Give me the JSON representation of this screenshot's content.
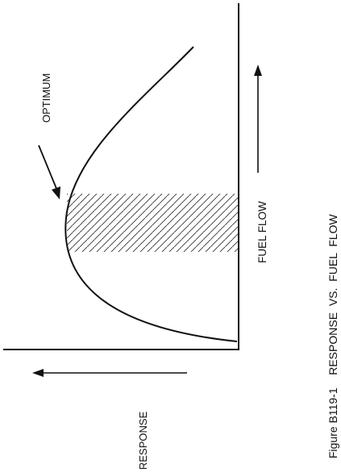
{
  "labels": {
    "optimum": "OPTIMUM",
    "fuel_flow": "FUEL FLOW",
    "response": "RESPONSE",
    "caption": "Figure B119-1    RESPONSE  VS.  FUEL  FLOW"
  },
  "colors": {
    "ink": "#111111",
    "background": "#ffffff"
  }
}
